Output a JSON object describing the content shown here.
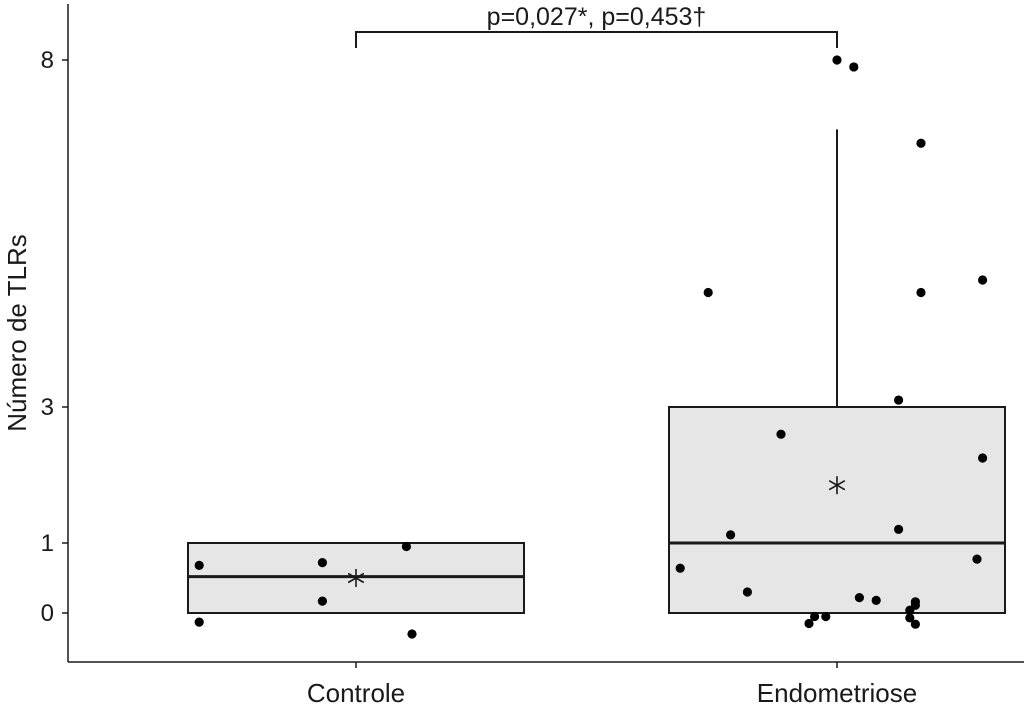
{
  "chart_data": {
    "type": "box",
    "title": "",
    "xlabel": "",
    "ylabel": "Número de TLRs",
    "ytick_labels": [
      "0",
      "1",
      "3",
      "8"
    ],
    "y_axis_breaks": [
      0,
      1,
      3,
      8
    ],
    "ylim": [
      -0.7,
      8.7
    ],
    "grid": false,
    "legend": "none",
    "annotation": "p=0,027*, p=0,453†",
    "colors": {
      "box_fill": "#e6e6e6",
      "outline": "#1a1a1a",
      "points": "#000000"
    },
    "categories": [
      "Controle",
      "Endometriose"
    ],
    "boxes": [
      {
        "category": "Controle",
        "q1": 0,
        "median": 0.52,
        "q3": 1,
        "whisker_low": 0,
        "whisker_high": 1,
        "mean": 0.5
      },
      {
        "category": "Endometriose",
        "q1": 0,
        "median": 1,
        "q3": 3,
        "whisker_low": 0,
        "whisker_high": 7,
        "mean": 1.85
      }
    ],
    "points": [
      {
        "category": "Controle",
        "jitter": -0.28,
        "y": 0.68
      },
      {
        "category": "Controle",
        "jitter": -0.28,
        "y": -0.13
      },
      {
        "category": "Controle",
        "jitter": -0.06,
        "y": 0.72
      },
      {
        "category": "Controle",
        "jitter": -0.06,
        "y": 0.17
      },
      {
        "category": "Controle",
        "jitter": 0.09,
        "y": 0.95
      },
      {
        "category": "Controle",
        "jitter": 0.1,
        "y": -0.3
      },
      {
        "category": "Endometriose",
        "jitter": 0.0,
        "y": 8.0
      },
      {
        "category": "Endometriose",
        "jitter": 0.03,
        "y": 7.9
      },
      {
        "category": "Endometriose",
        "jitter": 0.15,
        "y": 6.8
      },
      {
        "category": "Endometriose",
        "jitter": -0.23,
        "y": 4.65
      },
      {
        "category": "Endometriose",
        "jitter": 0.15,
        "y": 4.65
      },
      {
        "category": "Endometriose",
        "jitter": 0.26,
        "y": 4.83
      },
      {
        "category": "Endometriose",
        "jitter": 0.11,
        "y": 3.1
      },
      {
        "category": "Endometriose",
        "jitter": -0.1,
        "y": 2.6
      },
      {
        "category": "Endometriose",
        "jitter": 0.26,
        "y": 2.25
      },
      {
        "category": "Endometriose",
        "jitter": 0.11,
        "y": 1.2
      },
      {
        "category": "Endometriose",
        "jitter": -0.19,
        "y": 1.12
      },
      {
        "category": "Endometriose",
        "jitter": 0.25,
        "y": 0.77
      },
      {
        "category": "Endometriose",
        "jitter": -0.28,
        "y": 0.64
      },
      {
        "category": "Endometriose",
        "jitter": -0.16,
        "y": 0.3
      },
      {
        "category": "Endometriose",
        "jitter": 0.04,
        "y": 0.22
      },
      {
        "category": "Endometriose",
        "jitter": 0.07,
        "y": 0.18
      },
      {
        "category": "Endometriose",
        "jitter": 0.14,
        "y": 0.16
      },
      {
        "category": "Endometriose",
        "jitter": 0.14,
        "y": 0.11
      },
      {
        "category": "Endometriose",
        "jitter": 0.13,
        "y": 0.04
      },
      {
        "category": "Endometriose",
        "jitter": -0.04,
        "y": -0.05
      },
      {
        "category": "Endometriose",
        "jitter": -0.02,
        "y": -0.05
      },
      {
        "category": "Endometriose",
        "jitter": 0.13,
        "y": -0.07
      },
      {
        "category": "Endometriose",
        "jitter": -0.05,
        "y": -0.15
      },
      {
        "category": "Endometriose",
        "jitter": 0.14,
        "y": -0.16
      }
    ]
  }
}
